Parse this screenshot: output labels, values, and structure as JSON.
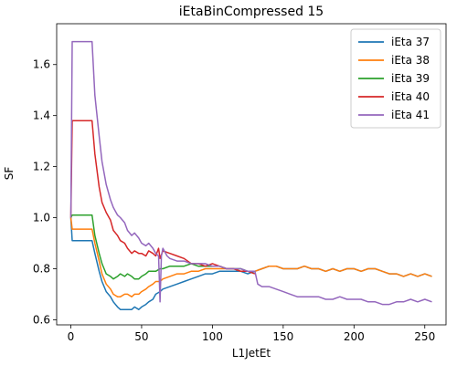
{
  "chart_data": {
    "type": "line",
    "title": "iEtaBinCompressed 15",
    "xlabel": "L1JetEt",
    "ylabel": "SF",
    "xlim": [
      -10,
      265
    ],
    "ylim": [
      0.58,
      1.76
    ],
    "xticks": [
      0,
      50,
      100,
      150,
      200,
      250
    ],
    "yticks": [
      0.6,
      0.8,
      1.0,
      1.2,
      1.4,
      1.6
    ],
    "ytick_labels": [
      "0.6",
      "0.8",
      "1.0",
      "1.2",
      "1.4",
      "1.6"
    ],
    "grid": false,
    "legend_position": "top-right",
    "series": [
      {
        "name": "iEta 37",
        "color": "#1f77b4",
        "x": [
          0,
          1,
          5,
          10,
          15,
          17,
          20,
          22,
          25,
          28,
          30,
          33,
          35,
          38,
          40,
          43,
          45,
          48,
          50,
          53,
          55,
          58,
          60,
          63,
          65,
          70,
          75,
          80,
          85,
          90,
          95,
          100,
          105,
          110,
          115,
          120,
          125,
          130,
          135,
          140,
          145,
          150,
          155,
          160,
          165,
          170,
          175,
          180,
          185,
          190,
          195,
          200,
          205,
          210,
          215,
          220,
          225,
          230,
          235,
          240,
          245,
          250,
          255
        ],
        "y": [
          1.0,
          0.91,
          0.91,
          0.91,
          0.91,
          0.86,
          0.79,
          0.75,
          0.71,
          0.69,
          0.67,
          0.65,
          0.64,
          0.64,
          0.64,
          0.64,
          0.65,
          0.64,
          0.65,
          0.66,
          0.67,
          0.68,
          0.7,
          0.71,
          0.72,
          0.73,
          0.74,
          0.75,
          0.76,
          0.77,
          0.78,
          0.78,
          0.79,
          0.79,
          0.79,
          0.79,
          0.78,
          0.79,
          0.8,
          0.81,
          0.81,
          0.8,
          0.8,
          0.8,
          0.81,
          0.8,
          0.8,
          0.79,
          0.8,
          0.79,
          0.8,
          0.8,
          0.79,
          0.8,
          0.8,
          0.79,
          0.78,
          0.78,
          0.77,
          0.78,
          0.77,
          0.78,
          0.77
        ]
      },
      {
        "name": "iEta 38",
        "color": "#ff7f0e",
        "x": [
          0,
          1,
          5,
          10,
          15,
          17,
          20,
          22,
          25,
          28,
          30,
          33,
          35,
          38,
          40,
          43,
          45,
          48,
          50,
          53,
          55,
          58,
          60,
          63,
          65,
          70,
          75,
          80,
          85,
          90,
          95,
          100,
          105,
          110,
          115,
          120,
          125,
          130,
          135,
          140,
          145,
          150,
          155,
          160,
          165,
          170,
          175,
          180,
          185,
          190,
          195,
          200,
          205,
          210,
          215,
          220,
          225,
          230,
          235,
          240,
          245,
          250,
          255
        ],
        "y": [
          1.0,
          0.955,
          0.955,
          0.955,
          0.955,
          0.9,
          0.83,
          0.78,
          0.74,
          0.72,
          0.7,
          0.69,
          0.69,
          0.7,
          0.7,
          0.69,
          0.7,
          0.7,
          0.71,
          0.72,
          0.73,
          0.74,
          0.75,
          0.75,
          0.76,
          0.77,
          0.78,
          0.78,
          0.79,
          0.79,
          0.8,
          0.8,
          0.8,
          0.8,
          0.8,
          0.79,
          0.79,
          0.79,
          0.8,
          0.81,
          0.81,
          0.8,
          0.8,
          0.8,
          0.81,
          0.8,
          0.8,
          0.79,
          0.8,
          0.79,
          0.8,
          0.8,
          0.79,
          0.8,
          0.8,
          0.79,
          0.78,
          0.78,
          0.77,
          0.78,
          0.77,
          0.78,
          0.77
        ]
      },
      {
        "name": "iEta 39",
        "color": "#2ca02c",
        "x": [
          0,
          1,
          5,
          10,
          15,
          17,
          20,
          22,
          25,
          28,
          30,
          33,
          35,
          38,
          40,
          43,
          45,
          48,
          50,
          53,
          55,
          58,
          60,
          63,
          65,
          70,
          75,
          80,
          85,
          90,
          95,
          100,
          105,
          110,
          115,
          120,
          125,
          130
        ],
        "y": [
          1.0,
          1.01,
          1.01,
          1.01,
          1.01,
          0.93,
          0.86,
          0.82,
          0.78,
          0.77,
          0.76,
          0.77,
          0.78,
          0.77,
          0.78,
          0.77,
          0.76,
          0.76,
          0.77,
          0.78,
          0.79,
          0.79,
          0.79,
          0.8,
          0.8,
          0.81,
          0.81,
          0.81,
          0.82,
          0.81,
          0.81,
          0.81,
          0.81,
          0.8,
          0.8,
          0.8,
          0.79,
          0.79
        ]
      },
      {
        "name": "iEta 40",
        "color": "#d62728",
        "x": [
          0,
          1,
          5,
          10,
          15,
          17,
          20,
          22,
          25,
          28,
          30,
          33,
          35,
          38,
          40,
          43,
          45,
          48,
          50,
          53,
          55,
          58,
          60,
          62,
          63,
          65,
          70,
          75,
          80,
          85,
          90,
          95,
          100,
          105,
          110,
          115,
          120,
          125,
          130
        ],
        "y": [
          1.0,
          1.38,
          1.38,
          1.38,
          1.38,
          1.25,
          1.12,
          1.06,
          1.02,
          0.99,
          0.95,
          0.93,
          0.91,
          0.9,
          0.88,
          0.86,
          0.87,
          0.86,
          0.86,
          0.85,
          0.87,
          0.86,
          0.85,
          0.88,
          0.84,
          0.87,
          0.86,
          0.85,
          0.84,
          0.82,
          0.82,
          0.81,
          0.82,
          0.81,
          0.8,
          0.8,
          0.79,
          0.79,
          0.78
        ]
      },
      {
        "name": "iEta 41",
        "color": "#9467bd",
        "x": [
          0,
          1,
          5,
          10,
          15,
          17,
          20,
          22,
          25,
          28,
          30,
          33,
          35,
          38,
          40,
          43,
          45,
          48,
          50,
          53,
          55,
          58,
          60,
          62,
          63,
          64,
          65,
          68,
          70,
          75,
          80,
          85,
          90,
          95,
          100,
          105,
          110,
          115,
          120,
          125,
          130,
          132,
          135,
          140,
          145,
          150,
          155,
          160,
          165,
          170,
          175,
          180,
          185,
          190,
          195,
          200,
          205,
          210,
          215,
          220,
          225,
          230,
          235,
          240,
          245,
          250,
          255
        ],
        "y": [
          1.0,
          1.69,
          1.69,
          1.69,
          1.69,
          1.48,
          1.32,
          1.22,
          1.13,
          1.07,
          1.04,
          1.01,
          1.0,
          0.98,
          0.95,
          0.93,
          0.94,
          0.92,
          0.9,
          0.89,
          0.9,
          0.88,
          0.86,
          0.85,
          0.67,
          0.85,
          0.88,
          0.85,
          0.84,
          0.83,
          0.83,
          0.82,
          0.82,
          0.82,
          0.81,
          0.81,
          0.8,
          0.8,
          0.8,
          0.79,
          0.79,
          0.74,
          0.73,
          0.73,
          0.72,
          0.71,
          0.7,
          0.69,
          0.69,
          0.69,
          0.69,
          0.68,
          0.68,
          0.69,
          0.68,
          0.68,
          0.68,
          0.67,
          0.67,
          0.66,
          0.66,
          0.67,
          0.67,
          0.68,
          0.67,
          0.68,
          0.67
        ]
      }
    ]
  }
}
